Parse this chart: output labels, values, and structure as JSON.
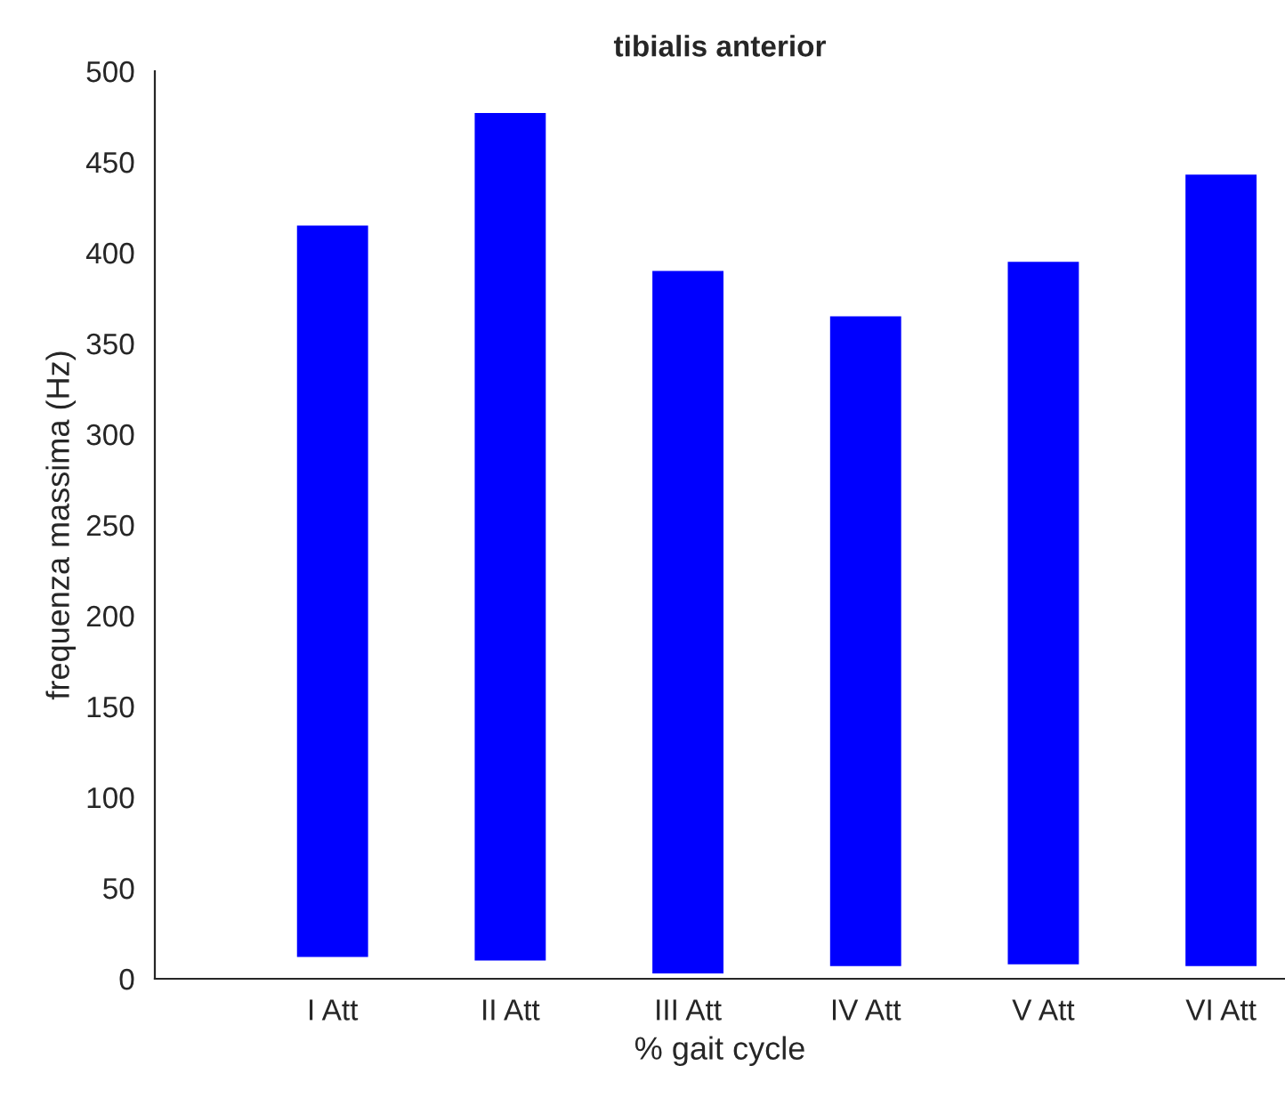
{
  "chart_data": {
    "type": "bar",
    "title": "tibialis anterior",
    "xlabel": "% gait cycle",
    "ylabel": "frequenza massima (Hz)",
    "categories": [
      "I Att",
      "II Att",
      "III Att",
      "IV Att",
      "V Att",
      "VI Att"
    ],
    "base": [
      12,
      10,
      3,
      7,
      8,
      7
    ],
    "values": [
      403,
      467,
      387,
      358,
      387,
      436
    ],
    "color": "#0000ff",
    "ylim": [
      0,
      500
    ],
    "yticks": [
      0,
      50,
      100,
      150,
      200,
      250,
      300,
      350,
      400,
      450,
      500
    ],
    "grid": false,
    "legend": false
  }
}
